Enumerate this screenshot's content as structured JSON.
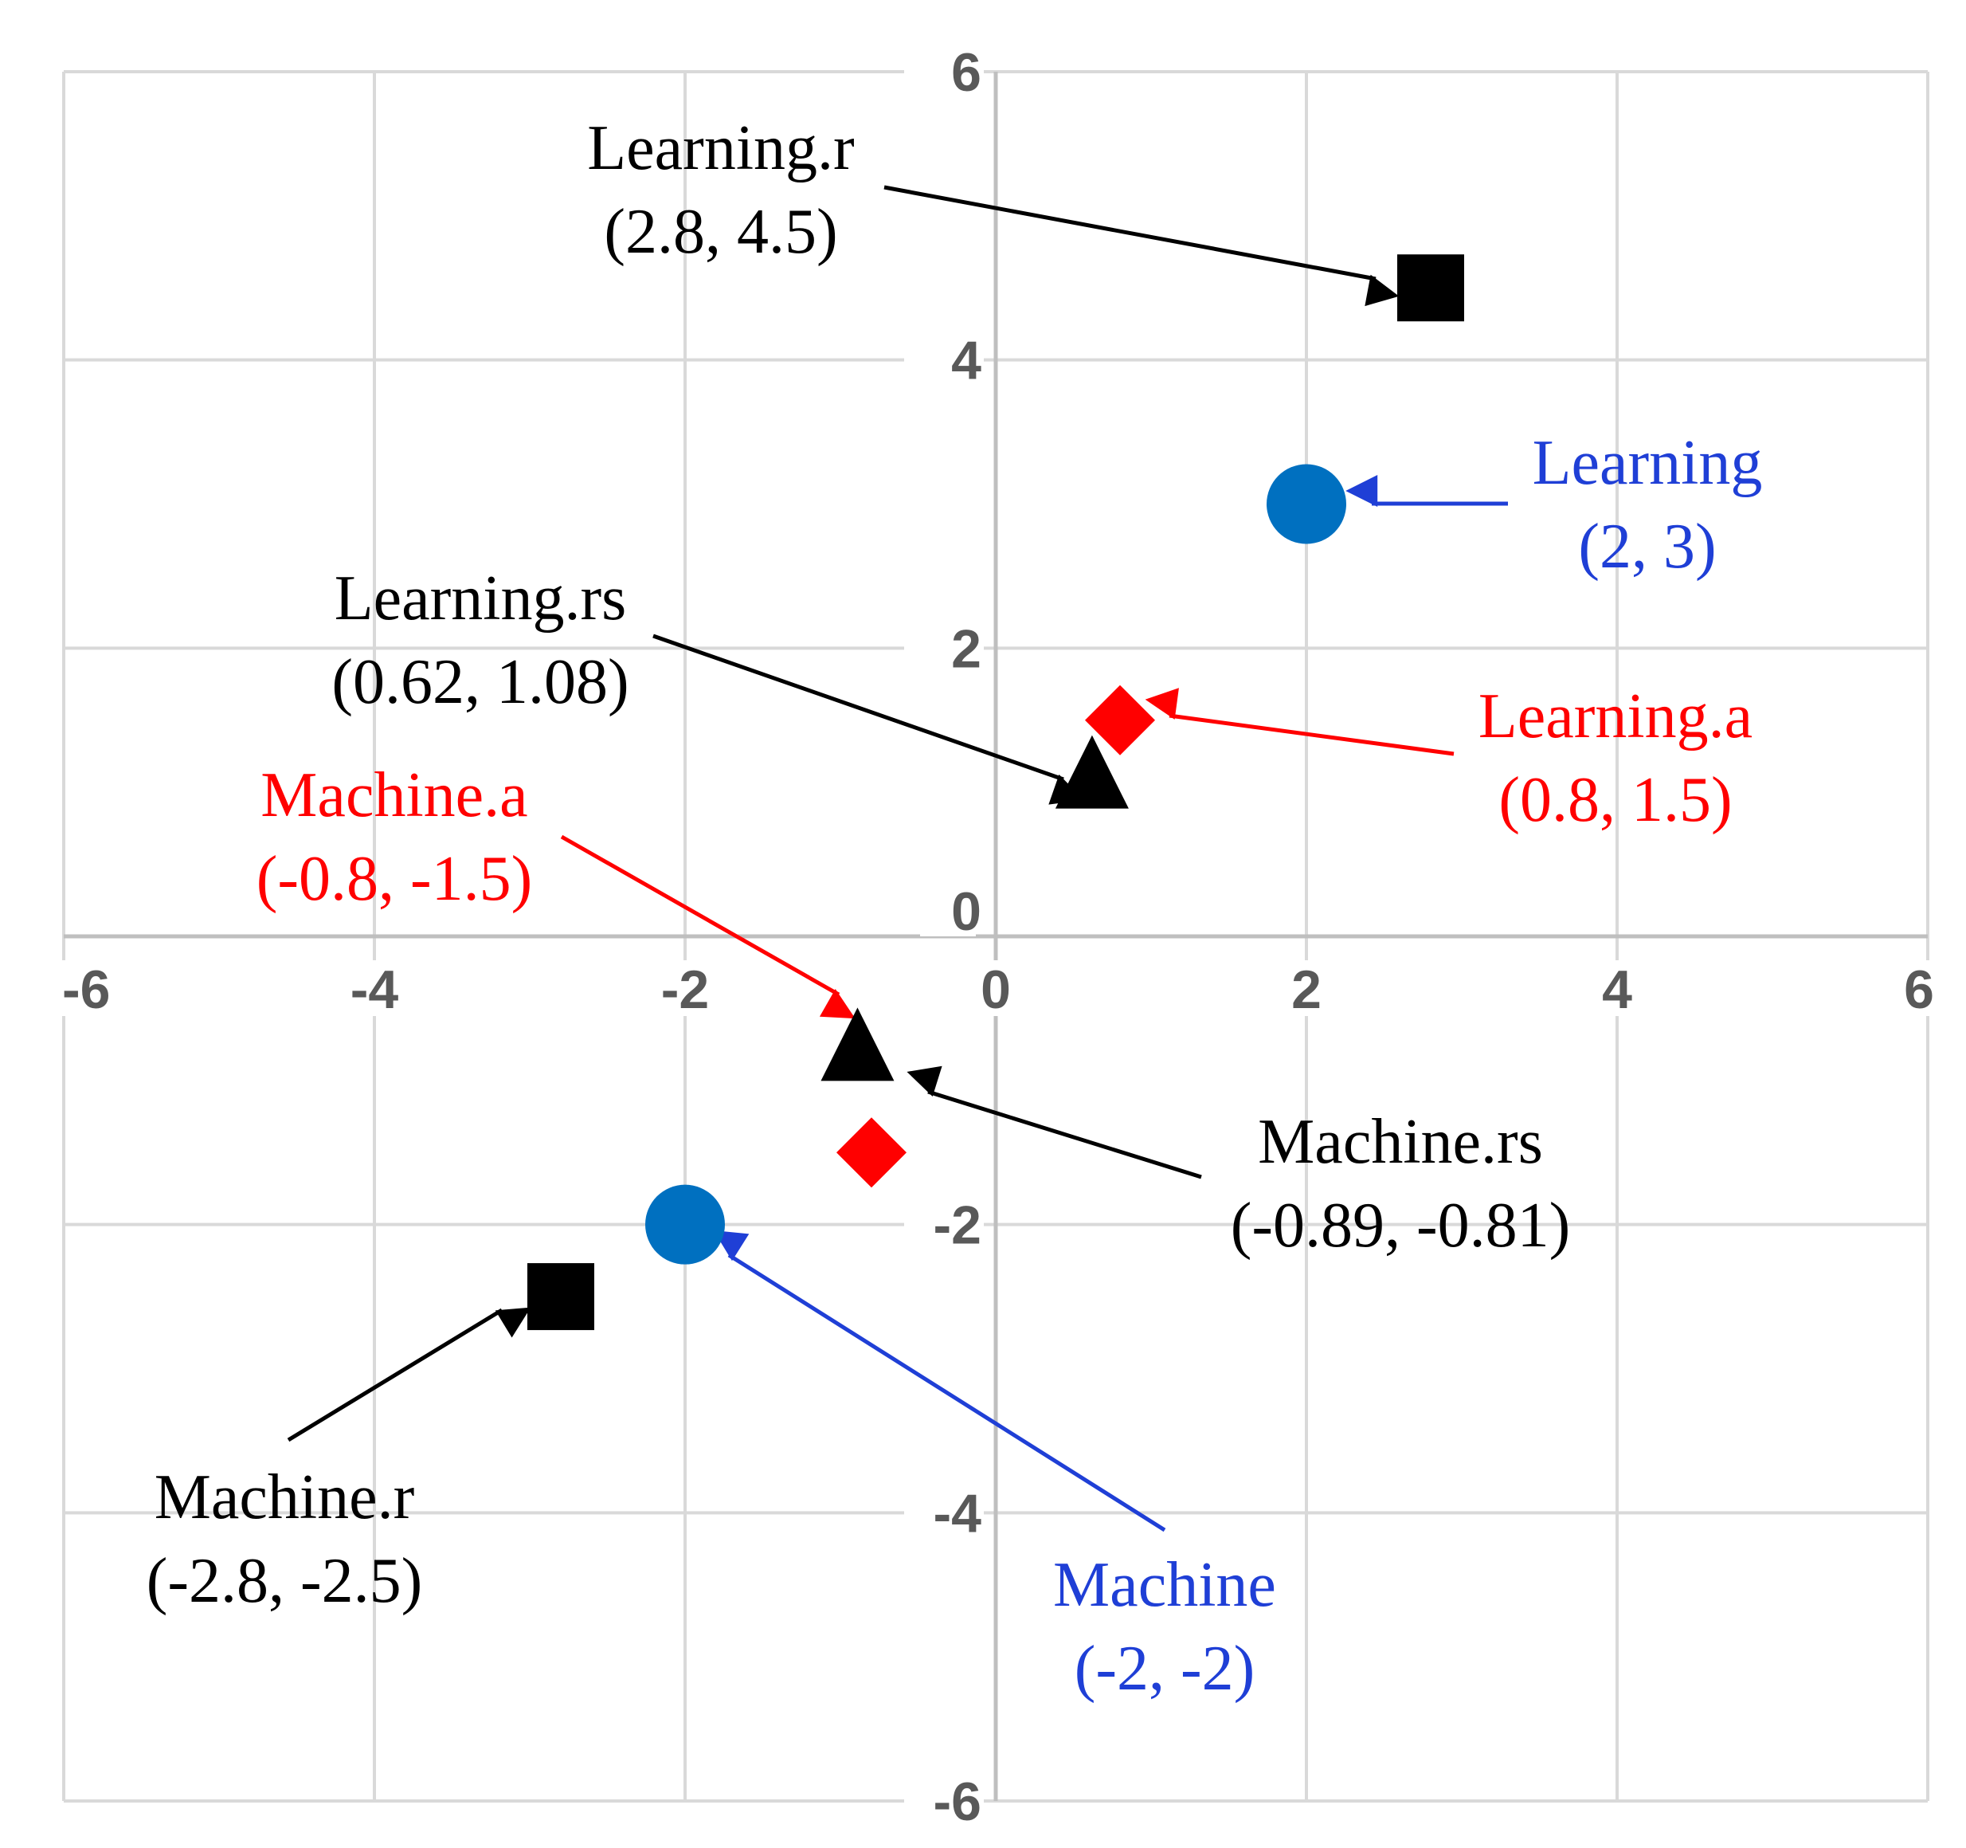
{
  "chart_data": {
    "type": "scatter",
    "title": "",
    "xlabel": "",
    "ylabel": "",
    "xlim": [
      -6,
      6
    ],
    "ylim": [
      -6,
      6
    ],
    "xticks": [
      "-6",
      "-4",
      "-2",
      "0",
      "2",
      "4",
      "6"
    ],
    "yticks": [
      "6",
      "4",
      "2",
      "0",
      "-2",
      "-4",
      "-6"
    ],
    "grid": true,
    "colors": {
      "black": "#000000",
      "blue": "#0070c0",
      "red": "#ff0000",
      "blue_text": "#1f3fd6",
      "grid": "#d9d9d9",
      "axis": "#bfbfbf"
    },
    "points": [
      {
        "id": "learning-r",
        "x": 2.8,
        "y": 4.5,
        "marker": "square",
        "color": "#000000",
        "label": "Learning.r",
        "coords": "(2.8, 4.5)"
      },
      {
        "id": "learning",
        "x": 2,
        "y": 3,
        "marker": "circle",
        "color": "#0070c0",
        "label": "Learning",
        "coords": "(2, 3)"
      },
      {
        "id": "learning-rs",
        "x": 0.62,
        "y": 1.08,
        "marker": "triangle",
        "color": "#000000",
        "label": "Learning.rs",
        "coords": "(0.62, 1.08)"
      },
      {
        "id": "learning-a",
        "x": 0.8,
        "y": 1.5,
        "marker": "diamond",
        "color": "#ff0000",
        "label": "Learning.a",
        "coords": "(0.8, 1.5)"
      },
      {
        "id": "machine-a",
        "x": -0.8,
        "y": -1.5,
        "marker": "diamond",
        "color": "#ff0000",
        "label": "Machine.a",
        "coords": "(-0.8, -1.5)"
      },
      {
        "id": "machine-rs",
        "x": -0.89,
        "y": -0.81,
        "marker": "triangle",
        "color": "#000000",
        "label": "Machine.rs",
        "coords": "(-0.89, -0.81)"
      },
      {
        "id": "machine",
        "x": -2,
        "y": -2,
        "marker": "circle",
        "color": "#0070c0",
        "label": "Machine",
        "coords": "(-2, -2)"
      },
      {
        "id": "machine-r",
        "x": -2.8,
        "y": -2.5,
        "marker": "square",
        "color": "#000000",
        "label": "Machine.r",
        "coords": "(-2.8, -2.5)"
      }
    ]
  }
}
